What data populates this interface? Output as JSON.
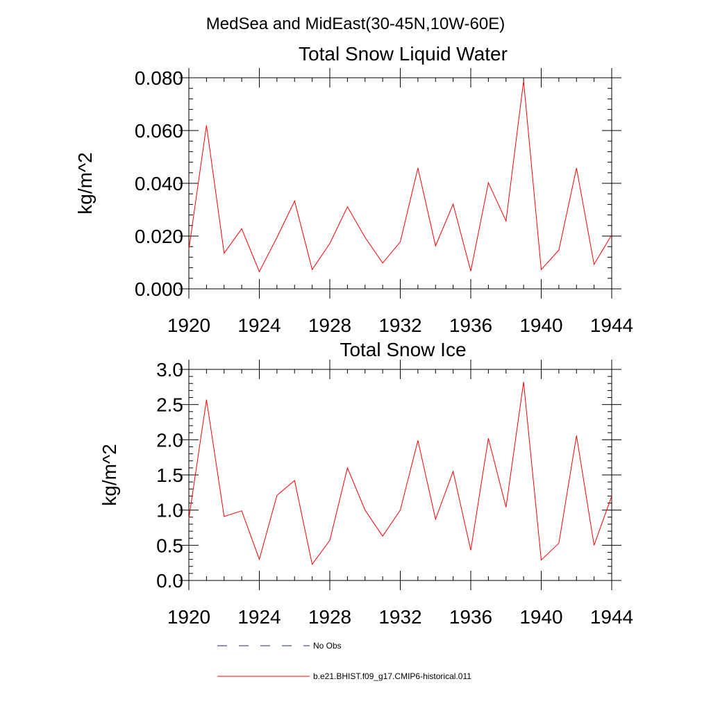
{
  "figure": {
    "title": "MedSea and MidEast(30-45N,10W-60E)"
  },
  "legend": [
    {
      "label": "No Obs",
      "color": "#1f2a6b",
      "dash": "dashed"
    },
    {
      "label": "b.e21.BHIST.f09_g17.CMIP6-historical.011",
      "color": "#ff0000",
      "dash": "solid"
    }
  ],
  "chart_data": [
    {
      "type": "line",
      "title": "Total Snow Liquid Water",
      "xlabel": "",
      "ylabel": "kg/m^2",
      "xlim": [
        1920,
        1944
      ],
      "ylim": [
        0,
        0.08
      ],
      "x_ticks": [
        1920,
        1924,
        1928,
        1932,
        1936,
        1940,
        1944
      ],
      "x_tick_labels": [
        "1920",
        "1924",
        "1928",
        "1932",
        "1936",
        "1940",
        "1944"
      ],
      "y_ticks": [
        0,
        0.02,
        0.04,
        0.06,
        0.08
      ],
      "y_tick_labels": [
        "0.000",
        "0.020",
        "0.040",
        "0.060",
        "0.080"
      ],
      "x": [
        1920,
        1921,
        1922,
        1923,
        1924,
        1925,
        1926,
        1927,
        1928,
        1929,
        1930,
        1931,
        1932,
        1933,
        1934,
        1935,
        1936,
        1937,
        1938,
        1939,
        1940,
        1941,
        1942,
        1943,
        1944
      ],
      "series": [
        {
          "name": "b.e21.BHIST.f09_g17.CMIP6-historical.011",
          "color": "#ff0000",
          "values": [
            0.015,
            0.062,
            0.0135,
            0.0228,
            0.0065,
            0.0195,
            0.0333,
            0.0073,
            0.0172,
            0.0311,
            0.0195,
            0.0098,
            0.0178,
            0.0458,
            0.0163,
            0.0321,
            0.0067,
            0.0402,
            0.0257,
            0.0788,
            0.0073,
            0.0147,
            0.0458,
            0.0093,
            0.0205
          ]
        }
      ]
    },
    {
      "type": "line",
      "title": "Total Snow Ice",
      "xlabel": "",
      "ylabel": "kg/m^2",
      "xlim": [
        1920,
        1944
      ],
      "ylim": [
        0,
        3.0
      ],
      "x_ticks": [
        1920,
        1924,
        1928,
        1932,
        1936,
        1940,
        1944
      ],
      "x_tick_labels": [
        "1920",
        "1924",
        "1928",
        "1932",
        "1936",
        "1940",
        "1944"
      ],
      "y_ticks": [
        0,
        0.5,
        1.0,
        1.5,
        2.0,
        2.5,
        3.0
      ],
      "y_tick_labels": [
        "0.0",
        "0.5",
        "1.0",
        "1.5",
        "2.0",
        "2.5",
        "3.0"
      ],
      "x": [
        1920,
        1921,
        1922,
        1923,
        1924,
        1925,
        1926,
        1927,
        1928,
        1929,
        1930,
        1931,
        1932,
        1933,
        1934,
        1935,
        1936,
        1937,
        1938,
        1939,
        1940,
        1941,
        1942,
        1943,
        1944
      ],
      "series": [
        {
          "name": "b.e21.BHIST.f09_g17.CMIP6-historical.011",
          "color": "#ff0000",
          "values": [
            0.88,
            2.57,
            0.91,
            0.99,
            0.3,
            1.21,
            1.42,
            0.23,
            0.57,
            1.6,
            1.0,
            0.63,
            1.0,
            1.99,
            0.87,
            1.55,
            0.43,
            2.02,
            1.04,
            2.82,
            0.29,
            0.53,
            2.06,
            0.5,
            1.2
          ]
        }
      ]
    }
  ]
}
